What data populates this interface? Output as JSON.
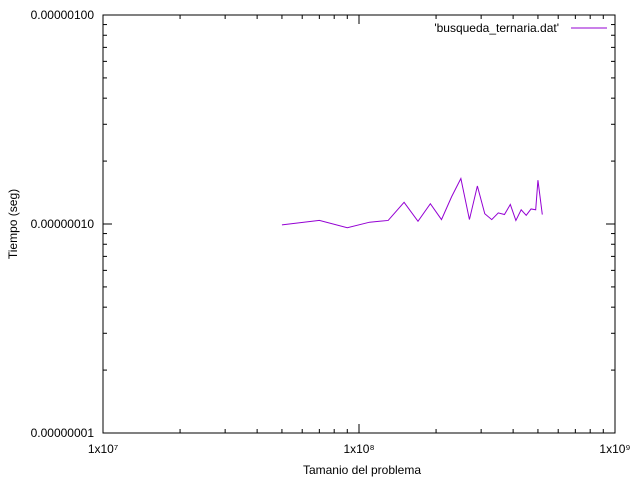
{
  "chart_data": {
    "type": "line",
    "title": "",
    "xlabel": "Tamanio del problema",
    "ylabel": "Tiempo (seg)",
    "x_scale": "log",
    "y_scale": "log",
    "xlim": [
      10000000,
      1000000000
    ],
    "ylim": [
      1e-08,
      1e-06
    ],
    "x_tick_labels": [
      {
        "value": 10000000,
        "label": "1x10⁷"
      },
      {
        "value": 100000000,
        "label": "1x10⁸"
      },
      {
        "value": 1000000000,
        "label": "1x10⁹"
      }
    ],
    "y_tick_labels": [
      {
        "value": 1e-08,
        "label": "0.00000001"
      },
      {
        "value": 1e-07,
        "label": "0.00000010"
      },
      {
        "value": 1e-06,
        "label": "0.00000100"
      }
    ],
    "grid": false,
    "legend_position": "top-right",
    "series": [
      {
        "name": "'busqueda_ternaria.dat'",
        "color": "#9400d3",
        "x": [
          50000000,
          70000000,
          90000000,
          110000000,
          130000000,
          150000000,
          170000000,
          190000000,
          210000000,
          230000000,
          250000000,
          270000000,
          290000000,
          310000000,
          330000000,
          350000000,
          370000000,
          390000000,
          410000000,
          430000000,
          450000000,
          470000000,
          490000000,
          500000000,
          520000000
        ],
        "y": [
          9.9e-08,
          1.04e-07,
          9.6e-08,
          1.02e-07,
          1.04e-07,
          1.27e-07,
          1.03e-07,
          1.25e-07,
          1.05e-07,
          1.35e-07,
          1.65e-07,
          1.05e-07,
          1.52e-07,
          1.12e-07,
          1.05e-07,
          1.13e-07,
          1.11e-07,
          1.24e-07,
          1.04e-07,
          1.17e-07,
          1.1e-07,
          1.18e-07,
          1.17e-07,
          1.62e-07,
          1.11e-07
        ]
      }
    ]
  }
}
